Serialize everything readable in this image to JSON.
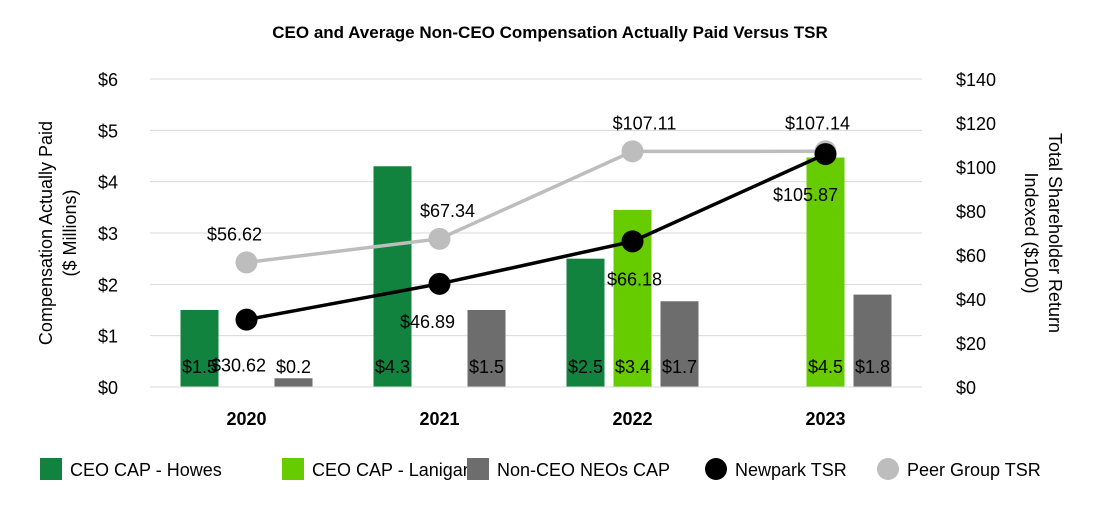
{
  "chart_data": {
    "type": "bar",
    "title": "CEO and Average Non-CEO Compensation Actually Paid Versus TSR",
    "categories": [
      "2020",
      "2021",
      "2022",
      "2023"
    ],
    "ylabel": "Compensation Actually Paid ($ Millions)",
    "ylabel_lines": [
      "Compensation Actually Paid",
      "($ Millions)"
    ],
    "y2label": "Total Shareholder Return Indexed ($100)",
    "y2label_lines": [
      "Total Shareholder Return",
      "Indexed ($100)"
    ],
    "ylim": [
      0,
      6
    ],
    "y2lim": [
      0,
      140
    ],
    "yticks": [
      "$0",
      "$1",
      "$2",
      "$3",
      "$4",
      "$5",
      "$6"
    ],
    "y2ticks": [
      "$0",
      "$20",
      "$40",
      "$60",
      "$80",
      "$100",
      "$120",
      "$140"
    ],
    "grid": true,
    "legend_position": "bottom",
    "bar_series": [
      {
        "name": "CEO CAP - Howes",
        "color": "#12833f",
        "values": [
          1.5,
          4.3,
          2.5,
          null
        ],
        "labels": [
          "$1.5",
          "$4.3",
          "$2.5",
          ""
        ]
      },
      {
        "name": "CEO CAP - Lanigan",
        "color": "#66cc00",
        "values": [
          null,
          null,
          3.45,
          4.47
        ],
        "labels": [
          "",
          "",
          "$3.4",
          "$4.5"
        ]
      },
      {
        "name": "Non-CEO NEOs CAP",
        "color": "#6d6d6d",
        "values": [
          0.17,
          1.5,
          1.67,
          1.8
        ],
        "labels": [
          "$0.2",
          "$1.5",
          "$1.7",
          "$1.8"
        ]
      }
    ],
    "line_series": [
      {
        "name": "Newpark TSR",
        "color": "#000000",
        "axis": "right",
        "values": [
          30.62,
          46.89,
          66.18,
          105.87
        ],
        "labels": [
          "$30.62",
          "$46.89",
          "$66.18",
          "$105.87"
        ]
      },
      {
        "name": "Peer Group TSR",
        "color": "#bdbdbd",
        "axis": "right",
        "values": [
          56.62,
          67.34,
          107.11,
          107.14
        ],
        "labels": [
          "$56.62",
          "$67.34",
          "$107.11",
          "$107.14"
        ]
      }
    ]
  }
}
